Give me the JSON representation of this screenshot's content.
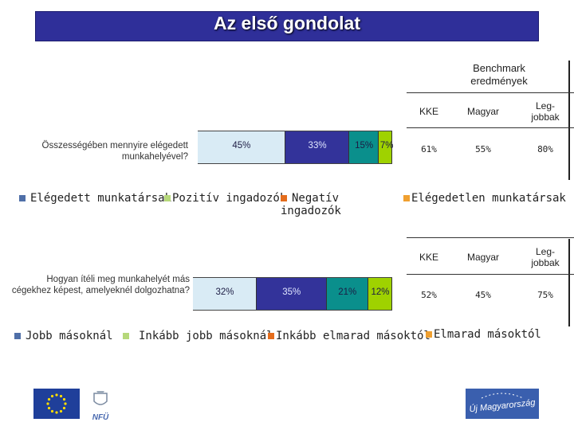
{
  "title": "Az első gondolat",
  "benchmark": {
    "title": "Benchmark eredmények",
    "columns": [
      "KKE",
      "Magyar",
      "Leg-jobbak"
    ]
  },
  "colors": {
    "elegedett": "#d9ebf5",
    "pozitiv": "#33339a",
    "negativ": "#0a8f8c",
    "elegedetlen": "#9fd200",
    "swatch1": "#4f6fa8",
    "swatch2": "#b6d87a",
    "swatch3": "#e46c1c",
    "swatch4": "#f0a030"
  },
  "chart_data": [
    {
      "type": "bar",
      "orientation": "horizontal-stacked",
      "question": "Összességében mennyire elégedett munkahelyével?",
      "series": [
        {
          "name": "Elégedett munkatársak",
          "value": 45,
          "label": "45%"
        },
        {
          "name": "Pozitív ingadozók",
          "value": 33,
          "label": "33%"
        },
        {
          "name": "Negatív ingadozók",
          "value": 15,
          "label": "15%"
        },
        {
          "name": "Elégedetlen munkatársak",
          "value": 7,
          "label": "7%"
        }
      ],
      "benchmark_values": [
        "61%",
        "55%",
        "80%"
      ],
      "legend": [
        "Elégedett munkatársak",
        "Pozitív ingadozók",
        "Negatív ingadozók",
        "Elégedetlen munkatársak"
      ]
    },
    {
      "type": "bar",
      "orientation": "horizontal-stacked",
      "question": "Hogyan ítéli meg munkahelyét más cégekhez képest, amelyeknél dolgozhatna?",
      "series": [
        {
          "name": "Jobb másoknál",
          "value": 32,
          "label": "32%"
        },
        {
          "name": "Inkább jobb másoknál",
          "value": 35,
          "label": "35%"
        },
        {
          "name": "Inkább elmarad másoktól",
          "value": 21,
          "label": "21%"
        },
        {
          "name": "Elmarad másoktól",
          "value": 12,
          "label": "12%"
        }
      ],
      "benchmark_values": [
        "52%",
        "45%",
        "75%"
      ],
      "legend": [
        "Jobb másoknál",
        "Inkább jobb másoknál",
        "Inkább elmarad másoktól",
        "Elmarad másoktól"
      ]
    }
  ],
  "footer": {
    "eu_logo": "eu-flag-icon",
    "nfu_label": "NFÜ",
    "ujmo_label": "Új Magyarország"
  }
}
